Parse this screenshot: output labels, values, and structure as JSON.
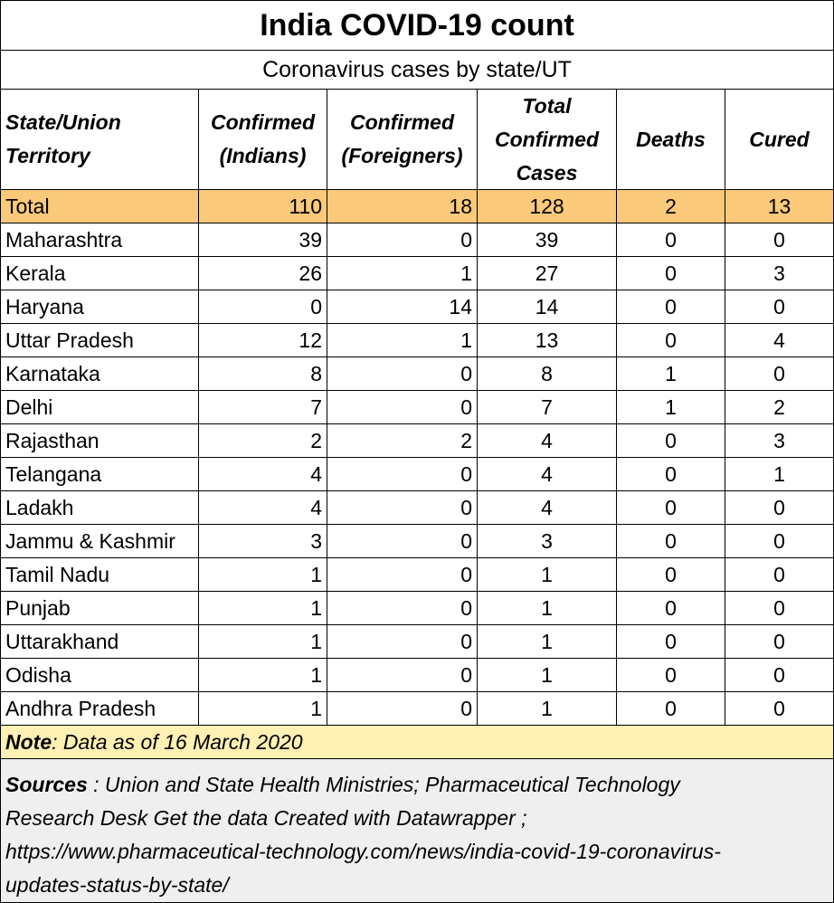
{
  "title": "India COVID-19 count",
  "subtitle": "Coronavirus cases by state/UT",
  "columns": {
    "state": [
      "State/Union",
      "Territory"
    ],
    "confirmed_indians": [
      "Confirmed",
      "(Indians)"
    ],
    "confirmed_foreigners": [
      "Confirmed",
      "(Foreigners)"
    ],
    "total_confirmed": [
      "Total",
      "Confirmed",
      "Cases"
    ],
    "deaths": [
      "Deaths"
    ],
    "cured": [
      "Cured"
    ]
  },
  "chart_data": {
    "type": "table",
    "title": "India COVID-19 count",
    "subtitle": "Coronavirus cases by state/UT",
    "headers": [
      "State/Union Territory",
      "Confirmed (Indians)",
      "Confirmed (Foreigners)",
      "Total Confirmed Cases",
      "Deaths",
      "Cured"
    ],
    "rows": [
      [
        "Total",
        110,
        18,
        128,
        2,
        13
      ],
      [
        "Maharashtra",
        39,
        0,
        39,
        0,
        0
      ],
      [
        "Kerala",
        26,
        1,
        27,
        0,
        3
      ],
      [
        "Haryana",
        0,
        14,
        14,
        0,
        0
      ],
      [
        "Uttar Pradesh",
        12,
        1,
        13,
        0,
        4
      ],
      [
        "Karnataka",
        8,
        0,
        8,
        1,
        0
      ],
      [
        "Delhi",
        7,
        0,
        7,
        1,
        2
      ],
      [
        "Rajasthan",
        2,
        2,
        4,
        0,
        3
      ],
      [
        "Telangana",
        4,
        0,
        4,
        0,
        1
      ],
      [
        "Ladakh",
        4,
        0,
        4,
        0,
        0
      ],
      [
        "Jammu & Kashmir",
        3,
        0,
        3,
        0,
        0
      ],
      [
        "Tamil Nadu",
        1,
        0,
        1,
        0,
        0
      ],
      [
        "Punjab",
        1,
        0,
        1,
        0,
        0
      ],
      [
        "Uttarakhand",
        1,
        0,
        1,
        0,
        0
      ],
      [
        "Odisha",
        1,
        0,
        1,
        0,
        0
      ],
      [
        "Andhra Pradesh",
        1,
        0,
        1,
        0,
        0
      ]
    ]
  },
  "note": {
    "label": "Note",
    "text": " : Data as of 16 March 2020"
  },
  "sources": {
    "label": "Sources",
    "lines": [
      " :  Union and State Health Ministries; Pharmaceutical Technology",
      "Research Desk Get the data Created with Datawrapper ;",
      "https://www.pharmaceutical-technology.com/news/india-covid-19-coronavirus-",
      "updates-status-by-state/"
    ]
  },
  "colors": {
    "total_row": "#fac97a",
    "note_bg": "#fff0b3",
    "sources_bg": "#efefef",
    "border": "#000000"
  }
}
